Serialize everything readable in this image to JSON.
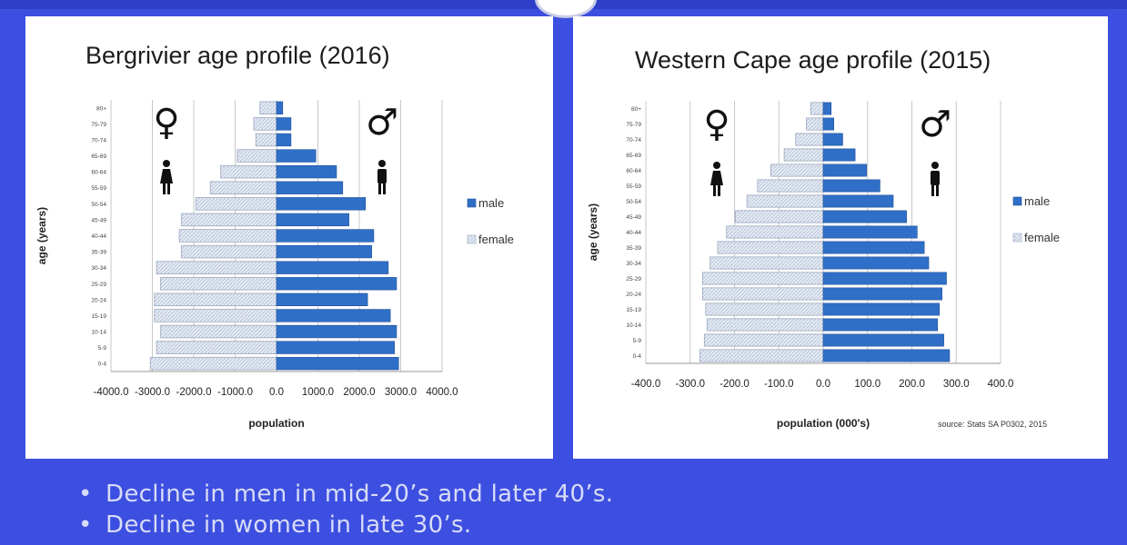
{
  "colors": {
    "background": "#3d4fe0",
    "male": "#2f6fc7",
    "female_fill": "#e6ecf5",
    "female_stroke": "#9aa8bf",
    "panel": "#ffffff",
    "bullet_text": "#d8dcf8"
  },
  "icons": {
    "female_symbol": "♀",
    "male_symbol": "♂",
    "woman_figure": "woman-icon",
    "man_figure": "man-icon"
  },
  "chart_data": [
    {
      "type": "bar",
      "orientation": "horizontal-population-pyramid",
      "title": "Bergrivier age profile (2016)",
      "xlabel": "population",
      "ylabel": "age (years)",
      "xlim": [
        -4000,
        4000
      ],
      "x_ticks": [
        "-4000.0",
        "-3000.0",
        "-2000.0",
        "-1000.0",
        "0.0",
        "1000.0",
        "2000.0",
        "3000.0",
        "4000.0"
      ],
      "grid": "vertical",
      "legend_position": "right",
      "categories": [
        "0-4",
        "5-9",
        "10-14",
        "15-19",
        "20-24",
        "25-29",
        "30-34",
        "35-39",
        "40-44",
        "45-49",
        "50-54",
        "55-59",
        "60-64",
        "65-69",
        "70-74",
        "75-79",
        "80+"
      ],
      "series": [
        {
          "name": "male",
          "values": [
            2950,
            2850,
            2900,
            2750,
            2200,
            2900,
            2700,
            2300,
            2350,
            1750,
            2150,
            1600,
            1450,
            950,
            350,
            350,
            150
          ]
        },
        {
          "name": "female",
          "values": [
            -3050,
            -2900,
            -2800,
            -2950,
            -2950,
            -2800,
            -2900,
            -2300,
            -2350,
            -2300,
            -1950,
            -1600,
            -1350,
            -950,
            -500,
            -550,
            -400
          ]
        }
      ]
    },
    {
      "type": "bar",
      "orientation": "horizontal-population-pyramid",
      "title": "Western Cape age profile (2015)",
      "xlabel": "population (000's)",
      "ylabel": "age (years)",
      "xlim": [
        -400,
        400
      ],
      "x_ticks": [
        "-400.0",
        "-300.0",
        "-200.0",
        "-100.0",
        "0.0",
        "100.0",
        "200.0",
        "300.0",
        "400.0"
      ],
      "grid": "vertical",
      "legend_position": "right",
      "source": "source: Stats SA P0302, 2015",
      "categories": [
        "0-4",
        "5-9",
        "10-14",
        "15-19",
        "20-24",
        "25-29",
        "30-34",
        "35-39",
        "40-44",
        "45-49",
        "50-54",
        "55-59",
        "60-64",
        "65-69",
        "70-74",
        "75-79",
        "80+"
      ],
      "series": [
        {
          "name": "male",
          "values": [
            285,
            272,
            258,
            262,
            268,
            278,
            238,
            228,
            212,
            188,
            158,
            128,
            98,
            72,
            44,
            24,
            18
          ]
        },
        {
          "name": "female",
          "values": [
            -278,
            -268,
            -262,
            -265,
            -272,
            -272,
            -255,
            -238,
            -218,
            -198,
            -172,
            -148,
            -118,
            -88,
            -62,
            -38,
            -28
          ]
        }
      ]
    }
  ],
  "bullets": [
    "Decline in men in mid-20’s and later 40’s.",
    "Decline in women in late 30’s."
  ]
}
